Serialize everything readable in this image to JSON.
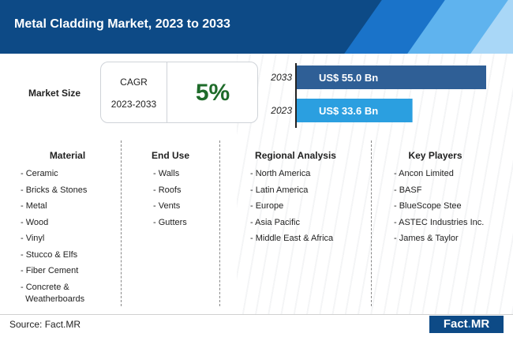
{
  "title": "Metal Cladding Market, 2023 to 2033",
  "market_size": {
    "label": "Market Size",
    "cagr_label": "CAGR",
    "cagr_period": "2023-2033",
    "cagr_value": "5%"
  },
  "colors": {
    "bar_2033": "#2f5f96",
    "bar_2023": "#2b9fe0",
    "cagr_value": "#1e6b2a",
    "header": "#0d4a86"
  },
  "chart_data": {
    "type": "bar",
    "orientation": "horizontal",
    "categories": [
      "2033",
      "2023"
    ],
    "values": [
      55.0,
      33.6
    ],
    "value_labels": [
      "US$ 55.0 Bn",
      "US$ 33.6 Bn"
    ],
    "unit": "US$ Bn"
  },
  "columns": {
    "material": {
      "heading": "Material",
      "items": [
        "- Ceramic",
        "- Bricks & Stones",
        "- Metal",
        "- Wood",
        "- Vinyl",
        "- Stucco & Elfs",
        "- Fiber Cement",
        "- Concrete &\nWeatherboards"
      ]
    },
    "end_use": {
      "heading": "End Use",
      "items": [
        "- Walls",
        "- Roofs",
        "- Vents",
        "- Gutters"
      ]
    },
    "regional": {
      "heading": "Regional Analysis",
      "items": [
        "- North America",
        "- Latin America",
        "- Europe",
        "- Asia Pacific",
        "- Middle East & Africa"
      ]
    },
    "players": {
      "heading": "Key Players",
      "items": [
        "- Ancon Limited",
        "- BASF",
        "- BlueScope Stee",
        "- ASTEC Industries Inc.",
        "- James & Taylor"
      ]
    }
  },
  "source": "Source: Fact.MR",
  "logo": {
    "left": "Fact",
    "dot": ".",
    "right": "MR"
  }
}
